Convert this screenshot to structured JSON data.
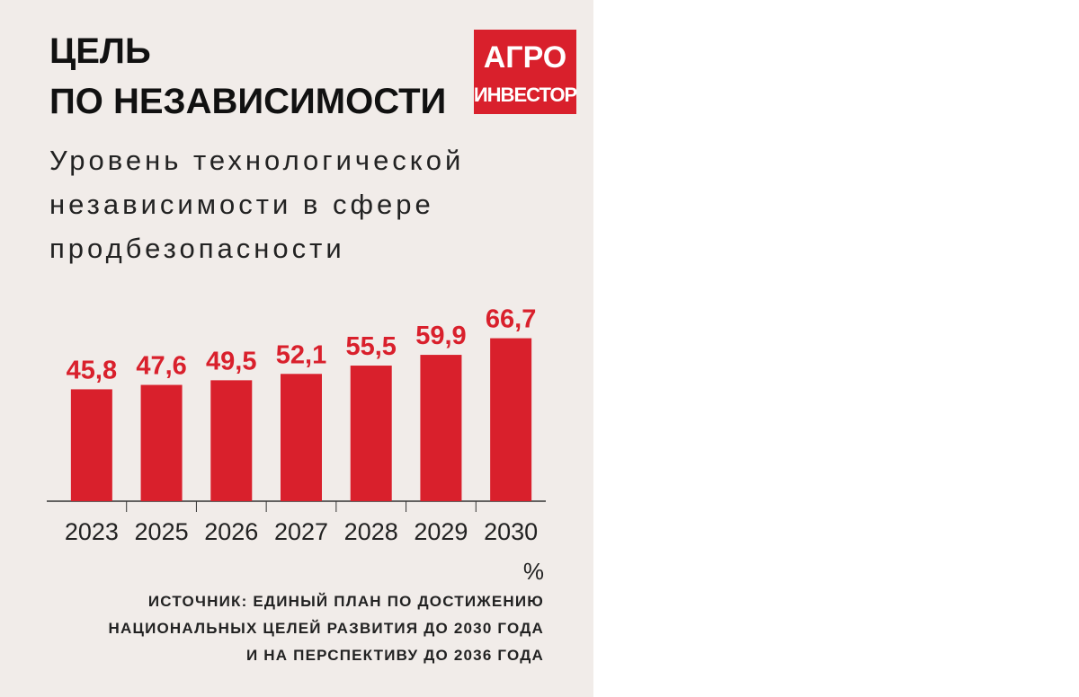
{
  "chart_data": {
    "type": "bar",
    "title": [
      "ЦЕЛЬ",
      "ПО НЕЗАВИСИМОСТИ"
    ],
    "subtitle": [
      "Уровень технологической",
      "независимости в сфере",
      "продбезопасности"
    ],
    "categories": [
      "2023",
      "2025",
      "2026",
      "2027",
      "2028",
      "2029",
      "2030"
    ],
    "values": [
      45.8,
      47.6,
      49.5,
      52.1,
      55.5,
      59.9,
      66.7
    ],
    "value_labels": [
      "45,8",
      "47,6",
      "49,5",
      "52,1",
      "55,5",
      "59,9",
      "66,7"
    ],
    "color": "#d9202c",
    "unit": "%",
    "source": [
      "ИСТОЧНИК: ЕДИНЫЙ ПЛАН ПО ДОСТИЖЕНИЮ",
      "НАЦИОНАЛЬНЫХ ЦЕЛЕЙ РАЗВИТИЯ ДО 2030 ГОДА",
      "И НА ПЕРСПЕКТИВУ ДО 2036 ГОДА"
    ]
  },
  "logo": [
    "АГРО",
    "ИНВЕСТОР"
  ]
}
